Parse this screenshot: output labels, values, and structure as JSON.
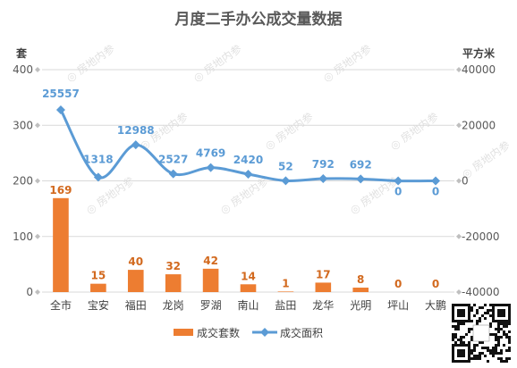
{
  "chart_data": {
    "type": "bar",
    "title": "月度二手办公成交量数据",
    "categories": [
      "全市",
      "宝安",
      "福田",
      "龙岗",
      "罗湖",
      "南山",
      "盐田",
      "龙华",
      "光明",
      "坪山",
      "大鹏"
    ],
    "left_unit": "套",
    "right_unit": "平方米",
    "left_ticks": [
      "0",
      "100",
      "200",
      "300",
      "400"
    ],
    "right_ticks": [
      "-40000",
      "-20000",
      "0",
      "20000",
      "40000"
    ],
    "ylim_left": [
      0,
      400
    ],
    "ylim_right": [
      -40000,
      40000
    ],
    "series": [
      {
        "name": "成交套数",
        "type": "bar",
        "axis": "left",
        "color": "#ed7d31",
        "values": [
          169,
          15,
          40,
          32,
          42,
          14,
          1,
          17,
          8,
          0,
          0
        ],
        "labels": [
          "169",
          "15",
          "40",
          "32",
          "42",
          "14",
          "1",
          "17",
          "8",
          "0",
          "0"
        ]
      },
      {
        "name": "成交面积",
        "type": "line",
        "axis": "right",
        "color": "#5b9bd5",
        "values": [
          25557,
          1318,
          12988,
          2527,
          4769,
          2420,
          52,
          792,
          692,
          0,
          0
        ],
        "labels": [
          "25557",
          "1318",
          "12988",
          "2527",
          "4769",
          "2420",
          "52",
          "792",
          "692",
          "0",
          "0"
        ]
      }
    ],
    "grid": true,
    "legend": "bottom",
    "watermark": "房地内参"
  }
}
